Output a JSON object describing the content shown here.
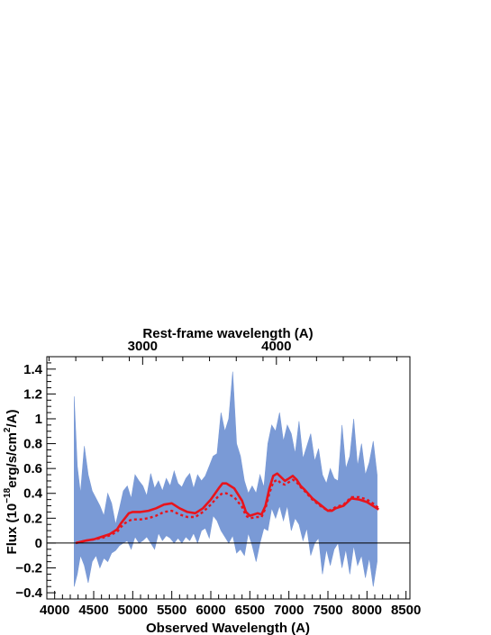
{
  "chart_data": {
    "type": "line",
    "title": "",
    "xlabel": "Observed Wavelength (A)",
    "ylabel": "Flux (10^-18 erg/s/cm^2/A)",
    "ylabel_parts": {
      "prefix": "Flux (10",
      "exp1": "−18",
      "mid": "erg/s/cm",
      "exp2": "2",
      "suffix": "/A)"
    },
    "top_axis_label": "Rest-frame wavelength (A)",
    "top_ticks": [
      {
        "value": 3000,
        "label": "3000",
        "observed": 5127
      },
      {
        "value": 4000,
        "label": "4000",
        "observed": 6840
      }
    ],
    "xlim": [
      3900,
      8550
    ],
    "ylim": [
      -0.45,
      1.5
    ],
    "x_ticks": [
      4000,
      4500,
      5000,
      5500,
      6000,
      6500,
      7000,
      7500,
      8000,
      8500
    ],
    "x_tick_labels": [
      "4000",
      "4500",
      "5000",
      "5500",
      "6000",
      "6500",
      "7000",
      "7500",
      "8000",
      "8500"
    ],
    "y_ticks": [
      -0.4,
      -0.2,
      0,
      0.2,
      0.4,
      0.6,
      0.8,
      1,
      1.2,
      1.4
    ],
    "y_tick_labels": [
      "−0.4",
      "−0.2",
      "0",
      "0.2",
      "0.4",
      "0.6",
      "0.8",
      "1",
      "1.2",
      "1.4"
    ],
    "zero_line": 0,
    "colors": {
      "band": "#7a9ad6",
      "model": "#e8141c",
      "axis": "#000000"
    },
    "series": [
      {
        "style": "band",
        "x": [
          4250,
          4290,
          4330,
          4380,
          4430,
          4480,
          4530,
          4580,
          4630,
          4680,
          4730,
          4780,
          4830,
          4880,
          4930,
          4980,
          5030,
          5080,
          5130,
          5180,
          5230,
          5280,
          5330,
          5380,
          5430,
          5480,
          5530,
          5580,
          5630,
          5680,
          5730,
          5780,
          5830,
          5880,
          5930,
          5980,
          6030,
          6080,
          6130,
          6180,
          6230,
          6280,
          6330,
          6380,
          6430,
          6480,
          6530,
          6580,
          6630,
          6680,
          6730,
          6780,
          6830,
          6880,
          6930,
          6980,
          7030,
          7080,
          7130,
          7180,
          7230,
          7280,
          7330,
          7380,
          7430,
          7480,
          7530,
          7580,
          7630,
          7680,
          7730,
          7780,
          7830,
          7880,
          7930,
          7980,
          8030,
          8080,
          8130
        ],
        "upper": [
          1.18,
          0.62,
          0.4,
          0.78,
          0.55,
          0.42,
          0.36,
          0.3,
          0.22,
          0.4,
          0.32,
          0.15,
          0.28,
          0.42,
          0.46,
          0.36,
          0.55,
          0.5,
          0.46,
          0.38,
          0.56,
          0.44,
          0.5,
          0.42,
          0.52,
          0.46,
          0.58,
          0.48,
          0.45,
          0.52,
          0.56,
          0.44,
          0.55,
          0.5,
          0.54,
          0.62,
          0.7,
          0.72,
          1.05,
          0.9,
          1.0,
          1.38,
          0.8,
          0.7,
          0.5,
          0.4,
          0.46,
          0.4,
          0.55,
          0.45,
          0.8,
          0.95,
          0.9,
          1.05,
          0.82,
          0.95,
          0.88,
          0.72,
          0.98,
          0.68,
          0.78,
          0.88,
          0.66,
          0.76,
          0.55,
          0.48,
          0.6,
          0.52,
          0.5,
          0.95,
          0.6,
          0.7,
          1.0,
          0.62,
          0.8,
          0.55,
          0.65,
          0.82,
          0.55
        ],
        "lower": [
          -0.35,
          -0.25,
          -0.1,
          -0.18,
          -0.32,
          -0.15,
          -0.1,
          -0.2,
          -0.12,
          -0.15,
          -0.08,
          -0.06,
          -0.02,
          0.0,
          0.02,
          -0.05,
          0.05,
          0.0,
          0.02,
          0.05,
          0.0,
          -0.05,
          0.08,
          0.02,
          0.06,
          0.04,
          0.0,
          0.04,
          0.0,
          0.05,
          0.02,
          0.08,
          0.0,
          0.1,
          0.12,
          0.04,
          0.22,
          0.18,
          0.1,
          0.05,
          0.0,
          0.06,
          -0.08,
          -0.05,
          -0.1,
          0.08,
          -0.02,
          -0.15,
          0.0,
          0.12,
          0.1,
          0.28,
          0.2,
          0.3,
          0.18,
          0.3,
          0.1,
          0.2,
          0.15,
          0.02,
          0.12,
          -0.1,
          0.0,
          0.04,
          -0.25,
          -0.05,
          -0.18,
          -0.05,
          0.0,
          -0.2,
          -0.05,
          -0.25,
          -0.02,
          -0.18,
          -0.1,
          -0.28,
          -0.12,
          -0.35,
          -0.15
        ]
      },
      {
        "style": "solid",
        "x": [
          4270,
          4400,
          4500,
          4600,
          4700,
          4800,
          4850,
          4900,
          4950,
          5000,
          5100,
          5200,
          5300,
          5400,
          5500,
          5600,
          5700,
          5800,
          5900,
          6000,
          6100,
          6150,
          6200,
          6300,
          6400,
          6450,
          6500,
          6600,
          6650,
          6700,
          6750,
          6800,
          6850,
          6900,
          6950,
          7000,
          7050,
          7100,
          7150,
          7200,
          7300,
          7400,
          7500,
          7550,
          7600,
          7700,
          7800,
          7900,
          8000,
          8100,
          8150
        ],
        "values": [
          0.0,
          0.02,
          0.03,
          0.05,
          0.07,
          0.11,
          0.16,
          0.2,
          0.24,
          0.25,
          0.25,
          0.26,
          0.28,
          0.31,
          0.32,
          0.28,
          0.25,
          0.24,
          0.28,
          0.35,
          0.44,
          0.48,
          0.48,
          0.44,
          0.34,
          0.25,
          0.22,
          0.24,
          0.23,
          0.3,
          0.44,
          0.54,
          0.56,
          0.53,
          0.5,
          0.52,
          0.54,
          0.51,
          0.46,
          0.43,
          0.36,
          0.31,
          0.26,
          0.26,
          0.28,
          0.3,
          0.36,
          0.35,
          0.33,
          0.29,
          0.27
        ]
      },
      {
        "style": "dotted",
        "x": [
          4270,
          4400,
          4500,
          4600,
          4700,
          4800,
          4850,
          4900,
          4950,
          5000,
          5100,
          5200,
          5300,
          5400,
          5500,
          5600,
          5700,
          5800,
          5900,
          6000,
          6100,
          6150,
          6200,
          6300,
          6400,
          6450,
          6500,
          6600,
          6650,
          6700,
          6750,
          6800,
          6850,
          6900,
          6950,
          7000,
          7050,
          7100,
          7150,
          7200,
          7300,
          7400,
          7500,
          7550,
          7600,
          7700,
          7800,
          7900,
          8000,
          8100,
          8150
        ],
        "values": [
          0.0,
          0.02,
          0.03,
          0.04,
          0.06,
          0.09,
          0.13,
          0.16,
          0.18,
          0.19,
          0.19,
          0.2,
          0.22,
          0.25,
          0.26,
          0.23,
          0.21,
          0.21,
          0.25,
          0.31,
          0.38,
          0.4,
          0.4,
          0.37,
          0.29,
          0.22,
          0.2,
          0.21,
          0.21,
          0.28,
          0.4,
          0.49,
          0.51,
          0.48,
          0.47,
          0.49,
          0.51,
          0.49,
          0.45,
          0.42,
          0.35,
          0.3,
          0.26,
          0.27,
          0.29,
          0.31,
          0.37,
          0.37,
          0.35,
          0.31,
          0.28
        ]
      }
    ]
  }
}
